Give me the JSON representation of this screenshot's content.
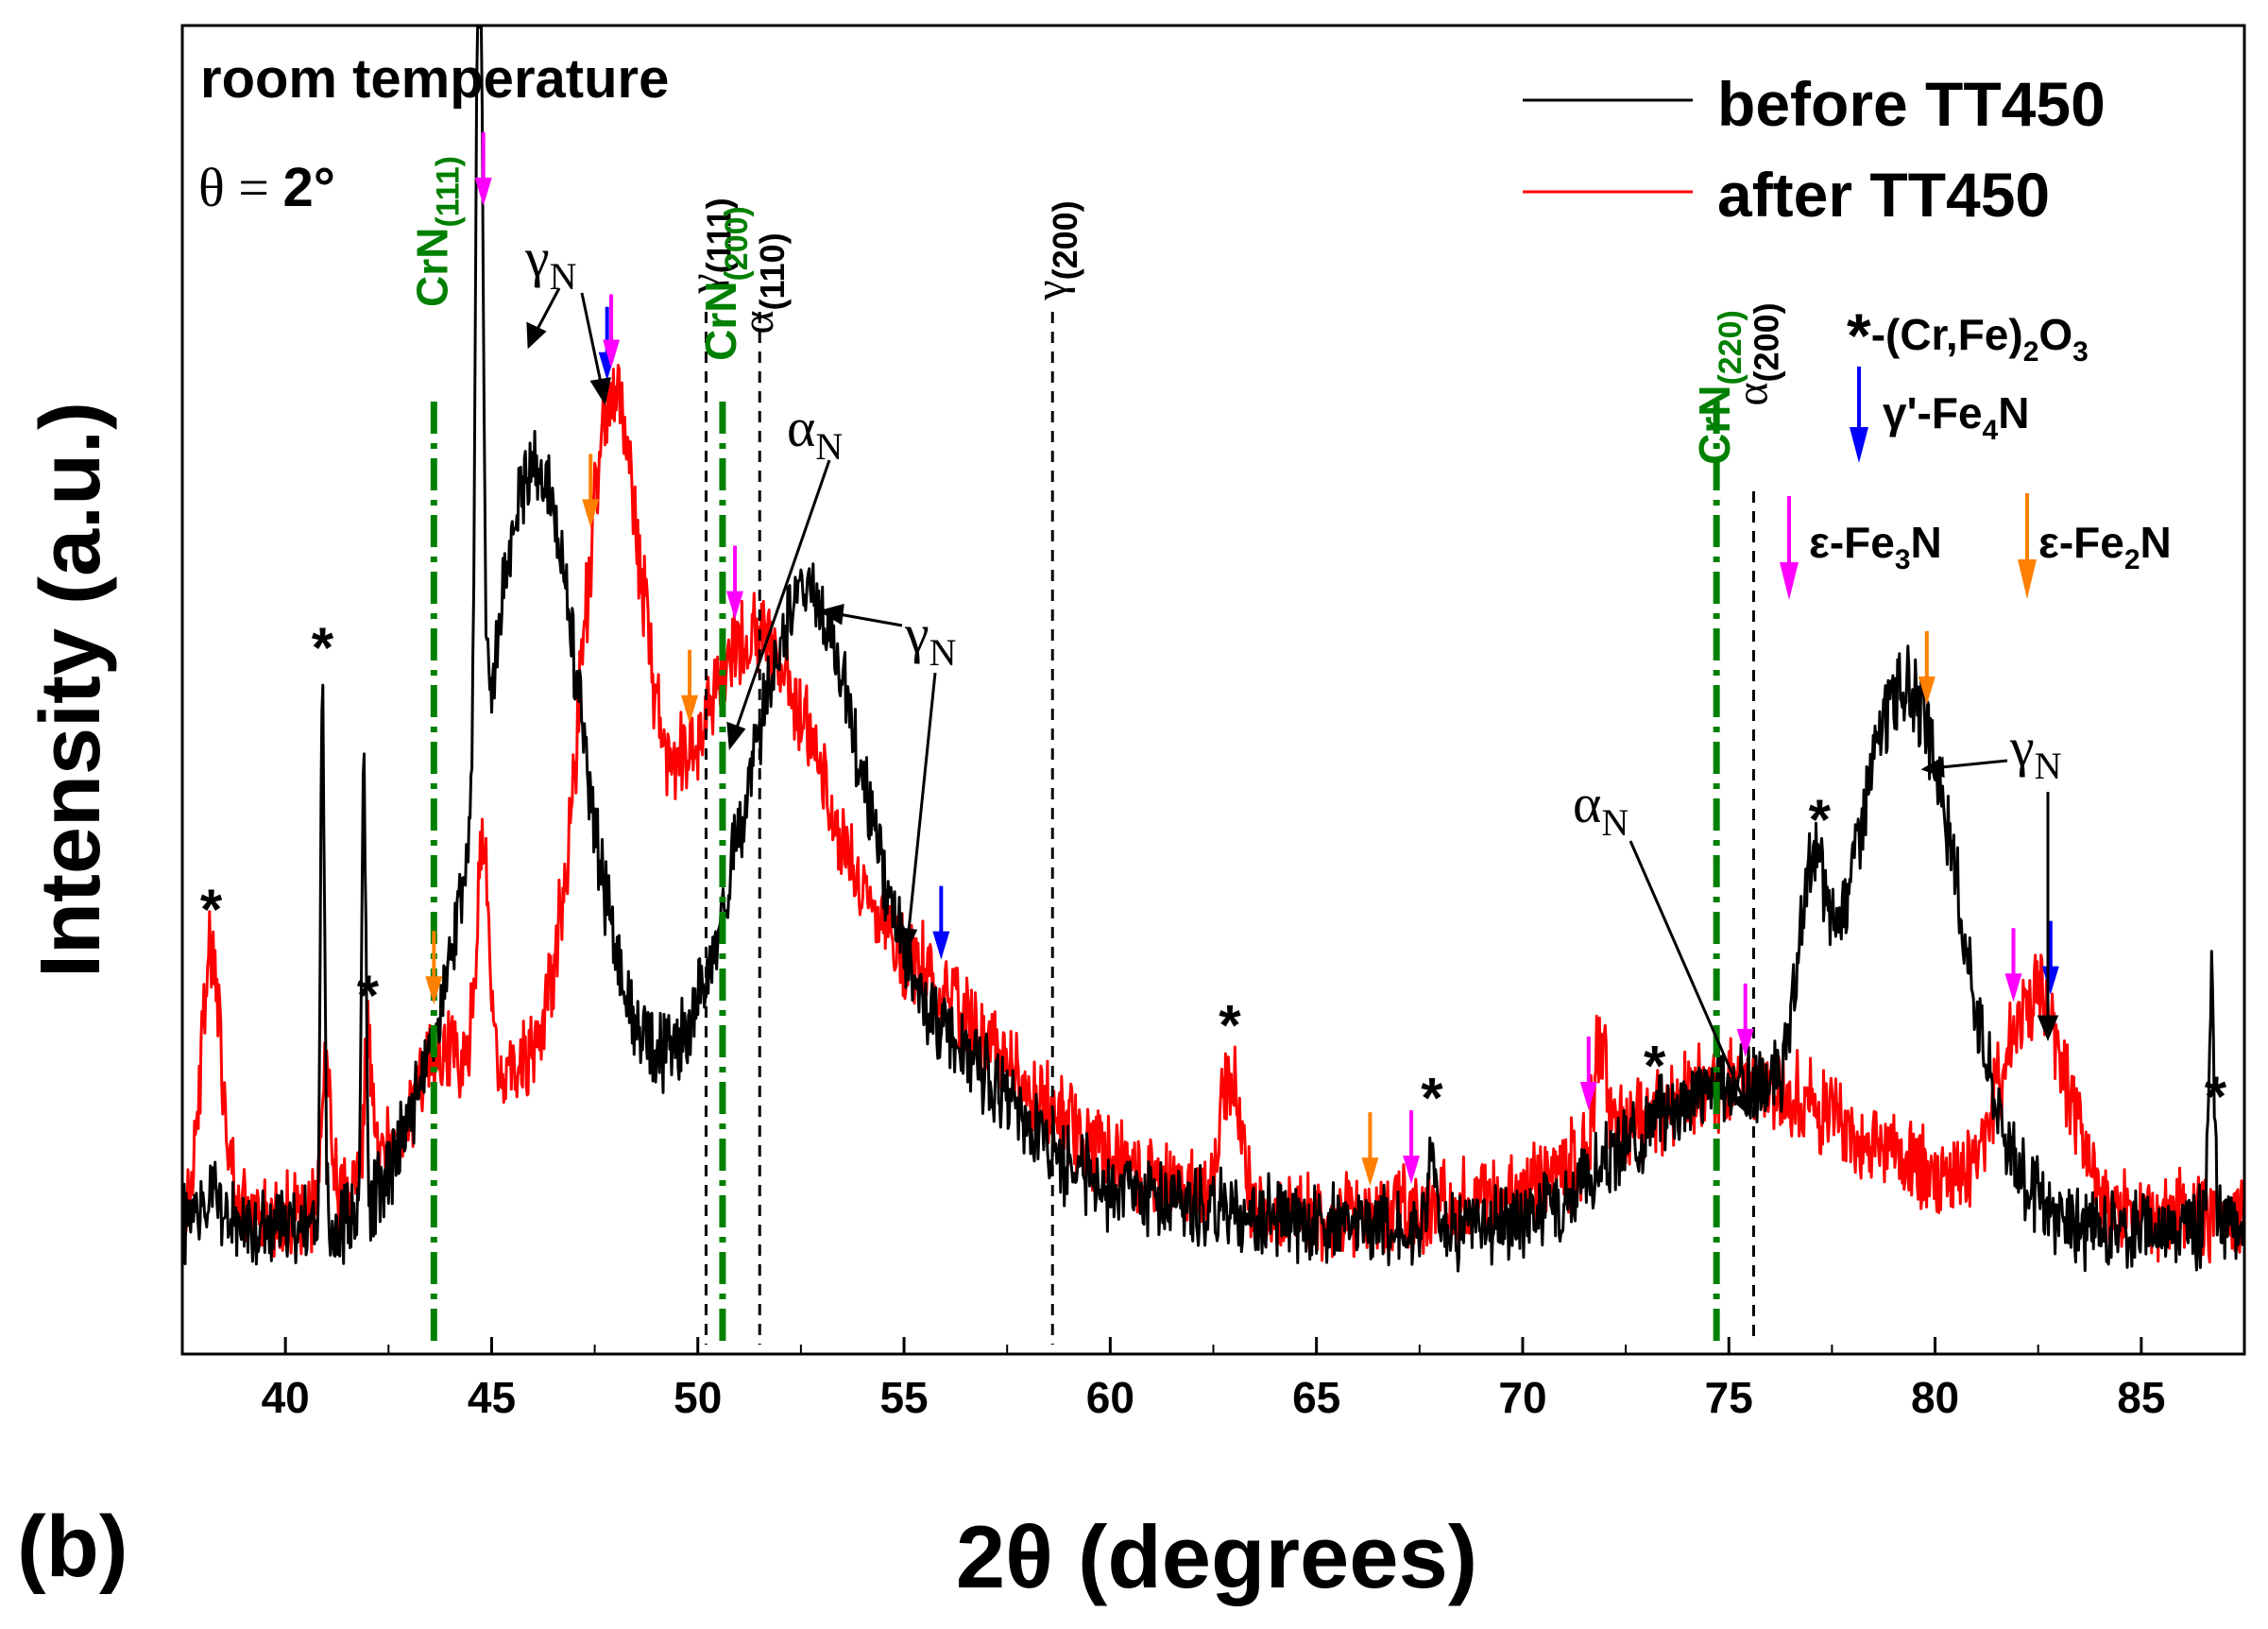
{
  "panel_label": "(b)",
  "chart_data": {
    "type": "line",
    "xlabel": "2θ (degrees)",
    "ylabel": "Intensity (a.u.)",
    "xlim": [
      37.5,
      87.5
    ],
    "ylim": [
      0,
      100
    ],
    "xticks": [
      40,
      45,
      50,
      55,
      60,
      65,
      70,
      75,
      80,
      85
    ],
    "xtick_labels": [
      "40",
      "45",
      "50",
      "55",
      "60",
      "65",
      "70",
      "75",
      "80",
      "85"
    ],
    "yticks_shown": false,
    "condition_label": "room temperature",
    "angle_label": {
      "symbol": "θ",
      "eq": " = ",
      "value": "2°"
    },
    "legend": [
      {
        "name": "before TT450",
        "color": "#000000"
      },
      {
        "name": "after TT450",
        "color": "#ff0000"
      }
    ],
    "series": [
      {
        "name": "before TT450",
        "color": "#000000",
        "baseline": 6,
        "peaks": [
          [
            38.2,
            0.2,
            3.0
          ],
          [
            40.9,
            0.05,
            45.0
          ],
          [
            41.9,
            0.05,
            38.0
          ],
          [
            43.5,
            0.8,
            8.0
          ],
          [
            44.7,
            0.08,
            82.0
          ],
          [
            46.0,
            1.2,
            63.0
          ],
          [
            49.0,
            1.5,
            9.0
          ],
          [
            52.6,
            1.5,
            52.0
          ],
          [
            56.3,
            1.6,
            12.0
          ],
          [
            60.0,
            2.5,
            2.5
          ],
          [
            62.8,
            0.2,
            1.0
          ],
          [
            67.8,
            0.08,
            7.0
          ],
          [
            74.8,
            2.2,
            12.0
          ],
          [
            77.0,
            0.3,
            15.0
          ],
          [
            79.3,
            1.3,
            44.0
          ],
          [
            86.7,
            0.07,
            20.0
          ]
        ],
        "noise": 2.6
      },
      {
        "name": "after TT450",
        "color": "#ff0000",
        "baseline": 7,
        "peaks": [
          [
            38.2,
            0.25,
            22.0
          ],
          [
            41.0,
            0.12,
            12.0
          ],
          [
            42.0,
            0.1,
            12.0
          ],
          [
            43.8,
            1.0,
            10.0
          ],
          [
            44.8,
            0.15,
            18.0
          ],
          [
            47.9,
            0.7,
            48.0
          ],
          [
            48.3,
            2.5,
            18.0
          ],
          [
            51.4,
            1.6,
            36.0
          ],
          [
            55.0,
            2.2,
            18.0
          ],
          [
            59.0,
            2.5,
            4.0
          ],
          [
            62.9,
            0.25,
            11.0
          ],
          [
            71.9,
            0.15,
            9.0
          ],
          [
            75.2,
            3.0,
            11.0
          ],
          [
            82.4,
            0.8,
            18.0
          ]
        ],
        "noise": 2.9
      }
    ],
    "reference_lines": [
      {
        "x": 43.6,
        "label": "CrN",
        "sub": "(111)",
        "color": "#008000",
        "style": "dashdot"
      },
      {
        "x": 50.2,
        "label": "γ",
        "sub": "(111)",
        "color": "#000000",
        "style": "dash"
      },
      {
        "x": 50.6,
        "label": "CrN",
        "sub": "(200)",
        "color": "#008000",
        "style": "dashdot"
      },
      {
        "x": 51.5,
        "label": "α",
        "sub": "(110)",
        "color": "#000000",
        "style": "dash"
      },
      {
        "x": 58.6,
        "label": "γ",
        "sub": "(200)",
        "color": "#000000",
        "style": "dash"
      },
      {
        "x": 74.7,
        "label": "CrN",
        "sub": "(220)",
        "color": "#008000",
        "style": "dashdot"
      },
      {
        "x": 75.6,
        "label": "α",
        "sub": "(200)",
        "color": "#000000",
        "style": "dash"
      }
    ],
    "phase_markers": [
      {
        "phase": "γ'-Fe4N",
        "color": "#0000ff",
        "x": [
          47.8,
          55.9,
          82.8
        ]
      },
      {
        "phase": "ε-Fe3N",
        "color": "#ff00ff",
        "x": [
          44.8,
          47.9,
          50.9,
          67.3,
          71.6,
          75.4,
          81.9
        ]
      },
      {
        "phase": "ε-Fe2N",
        "color": "#ff8000",
        "x": [
          43.6,
          47.4,
          49.8,
          66.3,
          79.8
        ]
      }
    ],
    "oxide_peaks_x": [
      38.2,
      40.9,
      42.0,
      62.9,
      67.8,
      73.2,
      77.2,
      86.8
    ],
    "annotations": [
      {
        "id": "gammaN-1",
        "label": "γ",
        "sub": "N"
      },
      {
        "id": "gammaN-2",
        "label": "γ",
        "sub": "N"
      },
      {
        "id": "gammaN-3",
        "label": "γ",
        "sub": "N"
      },
      {
        "id": "alphaN-1",
        "label": "α",
        "sub": "N"
      },
      {
        "id": "alphaN-2",
        "label": "α",
        "sub": "N"
      }
    ],
    "phase_legend": [
      {
        "id": "oxide",
        "symbol": "*",
        "text": "-(Cr,Fe)",
        "sub": "2",
        "text2": "O",
        "sub2": "3"
      },
      {
        "id": "fe4n",
        "color": "#0000ff",
        "text": "γ'-Fe",
        "sub": "4",
        "text2": "N"
      },
      {
        "id": "fe3n",
        "color": "#ff00ff",
        "text": "ε-Fe",
        "sub": "3",
        "text2": "N"
      },
      {
        "id": "fe2n",
        "color": "#ff8000",
        "text": "ε-Fe",
        "sub": "2",
        "text2": "N"
      }
    ]
  }
}
